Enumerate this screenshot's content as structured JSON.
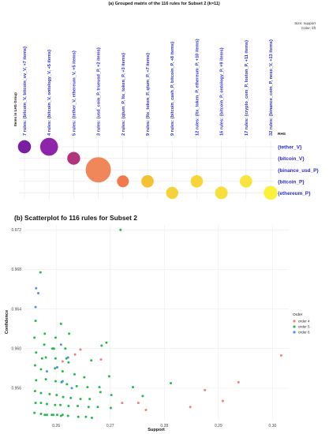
{
  "chart_data": [
    {
      "type": "grouped-matrix",
      "title": "(a) Grouped matrix of the 116 rules for Subset 2 (k=11)",
      "legend_note": [
        "Size: support",
        "Color: lift"
      ],
      "lhs_axis_label": "Items in LHS Group",
      "rhs_axis_label": "RHS",
      "columns": [
        "7 rules: {bitcoin_V, bitcoin_sv_V, +7 items}",
        "4 rules: {bitcoin_V, ontology_V, +5 items}",
        "5 rules: {tether_V, ethereum_V, +5 items}",
        "3 rules: {usd_coin_P, trueusd_P, +2 items}",
        "2 rules: {qtum_P, ltx_token_P, +3 items}",
        "9 rules: {ltx_token_P, qtum_P, +7 items}",
        "9 rules: {bitcoin_cash_P, bitcoin_P, +8 items}",
        "12 rules: {ltx_token_P, ethereum_P, +10 items}",
        "16 rules: {bitcoin_P, ontology_P, +9 items}",
        "17 rules: {crypto_com_P, loxton_P, +11 items}",
        "32 rules: {binance_coin_P, nexo_V, +13 items}"
      ],
      "rows": [
        "{tether_V}",
        "{bitcoin_V}",
        "{binance_usd_P}",
        "{bitcoin_P}",
        "{ethereum_P}"
      ],
      "cells": [
        {
          "col": 0,
          "row": 0,
          "support": 0.27,
          "color": "#7b1fa2"
        },
        {
          "col": 1,
          "row": 0,
          "support": 0.5,
          "color": "#8e24aa"
        },
        {
          "col": 2,
          "row": 1,
          "support": 0.26,
          "color": "#b0357a"
        },
        {
          "col": 3,
          "row": 2,
          "support": 1.0,
          "color": "#f0875a"
        },
        {
          "col": 4,
          "row": 3,
          "support": 0.22,
          "color": "#f2794c"
        },
        {
          "col": 5,
          "row": 3,
          "support": 0.24,
          "color": "#f5c132"
        },
        {
          "col": 6,
          "row": 4,
          "support": 0.23,
          "color": "#f5d23a"
        },
        {
          "col": 7,
          "row": 3,
          "support": 0.24,
          "color": "#f7d538"
        },
        {
          "col": 8,
          "row": 4,
          "support": 0.25,
          "color": "#f8e03c"
        },
        {
          "col": 9,
          "row": 3,
          "support": 0.24,
          "color": "#f9e33e"
        },
        {
          "col": 10,
          "row": 4,
          "support": 0.3,
          "color": "#fbf03a"
        }
      ]
    },
    {
      "type": "scatter",
      "title": "(b) Scatterplot fo 116 rules for Subset 2",
      "xlabel": "Support",
      "ylabel": "Confidence",
      "xlim": [
        0.254,
        0.303
      ],
      "ylim": [
        0.9528,
        0.9725
      ],
      "xticks": [
        0.26,
        0.27,
        0.28,
        0.29,
        0.3
      ],
      "yticks": [
        0.956,
        0.96,
        0.964,
        0.968,
        0.972
      ],
      "xtick_labels": [
        "0.26",
        "0.27",
        "0.28",
        "0.29",
        "0.30"
      ],
      "ytick_labels": [
        "0.956",
        "0.960",
        "0.964",
        "0.968",
        "0.972"
      ],
      "legend_title": "Order",
      "legend_position": "right",
      "series": [
        {
          "name": "order 4",
          "color": "#f07f7f",
          "points": [
            [
              0.3016,
              0.9593
            ],
            [
              0.2937,
              0.9566
            ],
            [
              0.2908,
              0.9547
            ],
            [
              0.2875,
              0.9558
            ],
            [
              0.2848,
              0.9541
            ],
            [
              0.2766,
              0.9538
            ],
            [
              0.2752,
              0.9545
            ],
            [
              0.2722,
              0.9545
            ],
            [
              0.2683,
              0.9589
            ],
            [
              0.2645,
              0.9599
            ],
            [
              0.2635,
              0.9594
            ],
            [
              0.2612,
              0.9587
            ]
          ]
        },
        {
          "name": "order 5",
          "color": "#27b84c",
          "points": [
            [
              0.2719,
              0.972
            ],
            [
              0.2571,
              0.9677
            ],
            [
              0.2609,
              0.9625
            ],
            [
              0.2624,
              0.9615
            ],
            [
              0.2693,
              0.9606
            ],
            [
              0.2593,
              0.96
            ],
            [
              0.2562,
              0.9628
            ],
            [
              0.2579,
              0.9615
            ],
            [
              0.2599,
              0.9611
            ],
            [
              0.2617,
              0.96
            ],
            [
              0.2574,
              0.959
            ],
            [
              0.2619,
              0.959
            ],
            [
              0.2665,
              0.9588
            ],
            [
              0.2684,
              0.9603
            ],
            [
              0.256,
              0.9611
            ],
            [
              0.2578,
              0.9604
            ],
            [
              0.2596,
              0.96
            ],
            [
              0.2563,
              0.9596
            ],
            [
              0.2581,
              0.9591
            ],
            [
              0.2599,
              0.959
            ],
            [
              0.2623,
              0.9586
            ],
            [
              0.2561,
              0.9583
            ],
            [
              0.2572,
              0.9579
            ],
            [
              0.2598,
              0.958
            ],
            [
              0.2612,
              0.9577
            ],
            [
              0.2634,
              0.9574
            ],
            [
              0.2652,
              0.9571
            ],
            [
              0.2563,
              0.9568
            ],
            [
              0.2581,
              0.9569
            ],
            [
              0.2599,
              0.9567
            ],
            [
              0.261,
              0.9566
            ],
            [
              0.262,
              0.9564
            ],
            [
              0.2638,
              0.9562
            ],
            [
              0.2658,
              0.9561
            ],
            [
              0.268,
              0.9561
            ],
            [
              0.2698,
              0.9572
            ],
            [
              0.2561,
              0.9557
            ],
            [
              0.2572,
              0.9555
            ],
            [
              0.2588,
              0.9554
            ],
            [
              0.2601,
              0.9553
            ],
            [
              0.2613,
              0.9551
            ],
            [
              0.2627,
              0.955
            ],
            [
              0.2645,
              0.9549
            ],
            [
              0.2662,
              0.9549
            ],
            [
              0.2682,
              0.9556
            ],
            [
              0.2702,
              0.9553
            ],
            [
              0.2562,
              0.9545
            ],
            [
              0.2572,
              0.9545
            ],
            [
              0.2583,
              0.9544
            ],
            [
              0.2598,
              0.9543
            ],
            [
              0.2608,
              0.9543
            ],
            [
              0.2623,
              0.9542
            ],
            [
              0.264,
              0.9542
            ],
            [
              0.266,
              0.9541
            ],
            [
              0.2677,
              0.9541
            ],
            [
              0.2701,
              0.954
            ],
            [
              0.256,
              0.9535
            ],
            [
              0.2572,
              0.9534
            ],
            [
              0.2583,
              0.9533
            ],
            [
              0.2595,
              0.9533
            ],
            [
              0.2609,
              0.9532
            ],
            [
              0.2622,
              0.9532
            ],
            [
              0.2641,
              0.9531
            ],
            [
              0.2655,
              0.9531
            ],
            [
              0.2666,
              0.953
            ],
            [
              0.2579,
              0.9533
            ],
            [
              0.2592,
              0.9533
            ],
            [
              0.2602,
              0.9533
            ],
            [
              0.2612,
              0.9533
            ],
            [
              0.2742,
              0.9561
            ],
            [
              0.2812,
              0.9565
            ],
            [
              0.276,
              0.9552
            ]
          ]
        },
        {
          "name": "order 6",
          "color": "#4f8ff7",
          "points": [
            [
              0.2563,
              0.9661
            ],
            [
              0.2567,
              0.9656
            ],
            [
              0.2562,
              0.9642
            ],
            [
              0.2609,
              0.9604
            ],
            [
              0.2622,
              0.9591
            ],
            [
              0.2602,
              0.9581
            ],
            [
              0.2583,
              0.9577
            ],
            [
              0.2612,
              0.9567
            ],
            [
              0.2629,
              0.956
            ]
          ]
        }
      ]
    }
  ]
}
